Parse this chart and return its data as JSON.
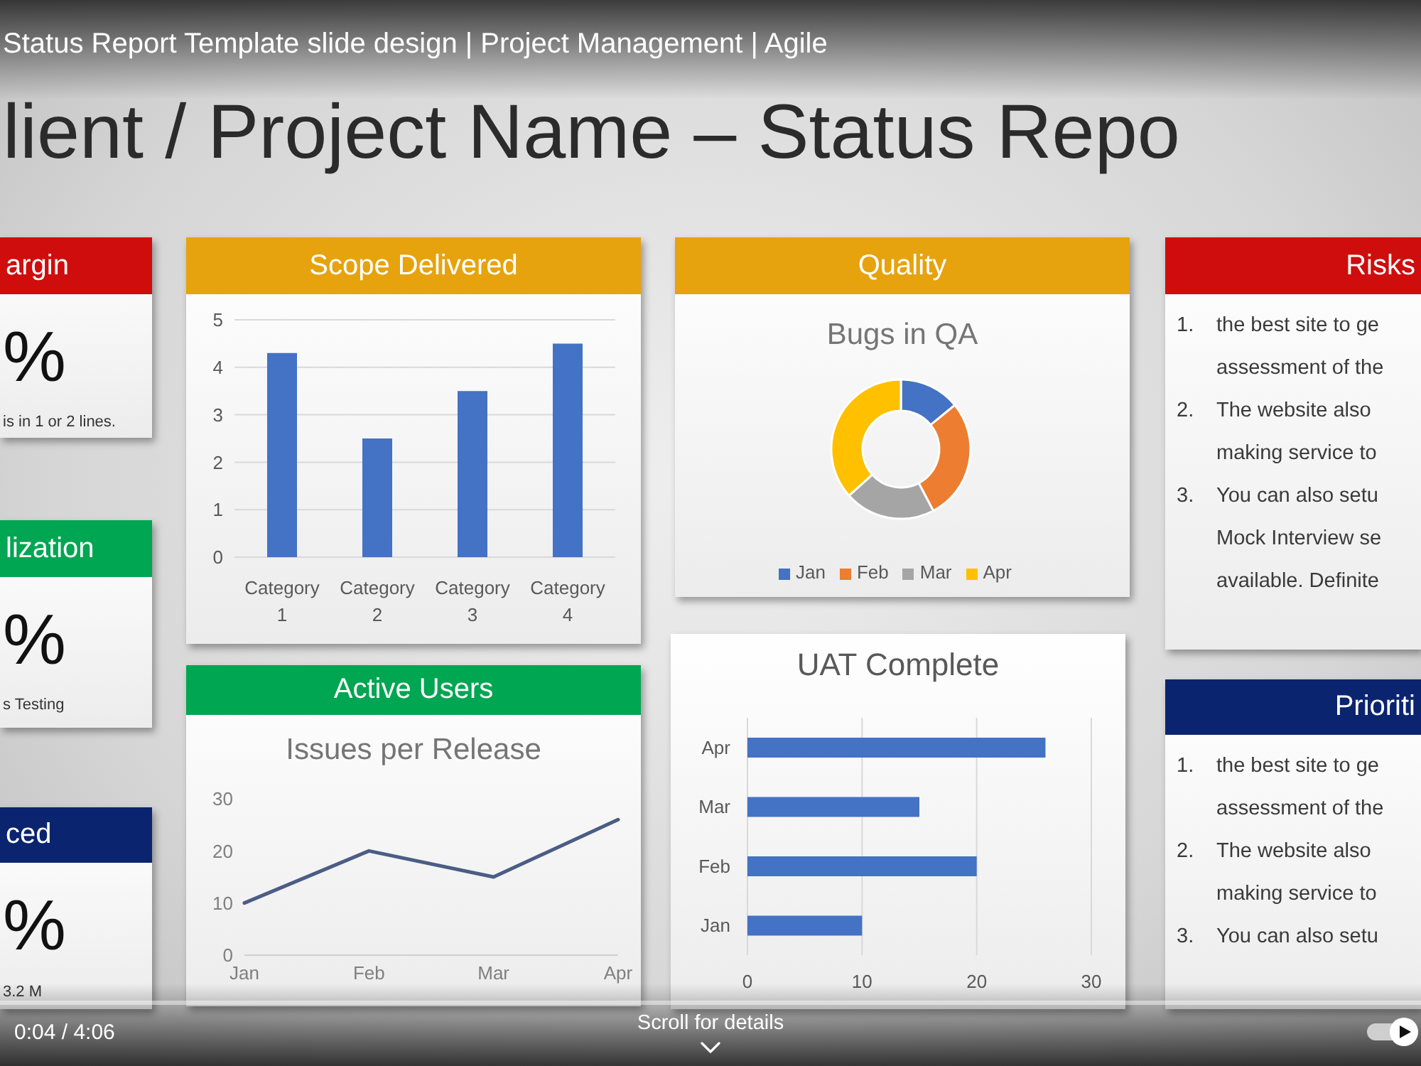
{
  "chart_data": [
    {
      "type": "other",
      "title": "lient / Project Name – Status Repo",
      "annotations": [
        "Status Report Template slide design | Project Management | Agile",
        "0:04 / 4:06",
        "Scroll for details"
      ]
    },
    {
      "type": "other",
      "title": "argin",
      "annotations": [
        "%",
        "is in 1 or 2 lines."
      ]
    },
    {
      "type": "other",
      "title": "lization",
      "annotations": [
        "%",
        "s Testing"
      ]
    },
    {
      "type": "other",
      "title": "ced",
      "annotations": [
        "%",
        "3.2 M"
      ]
    },
    {
      "type": "bar",
      "title": "Scope Delivered",
      "categories": [
        "Category 1",
        "Category 2",
        "Category 3",
        "Category 4"
      ],
      "values": [
        4.3,
        2.5,
        3.5,
        4.5
      ],
      "color": "#4472c4",
      "ylim": [
        0,
        5
      ],
      "yticks": [
        0,
        1,
        2,
        3,
        4,
        5
      ],
      "grid": "y"
    },
    {
      "type": "line",
      "title": "Active Users",
      "subtitle": "Issues per Release",
      "categories": [
        "Jan",
        "Feb",
        "Mar",
        "Apr"
      ],
      "values": [
        10,
        20,
        15,
        26
      ],
      "color": "#4b5d85",
      "ylim": [
        0,
        30
      ],
      "yticks": [
        0,
        10,
        20,
        30
      ],
      "marker": "none"
    },
    {
      "type": "donut",
      "title": "Quality",
      "subtitle": "Bugs in QA",
      "categories": [
        "Jan",
        "Feb",
        "Mar",
        "Apr"
      ],
      "values": [
        14.1,
        28.2,
        21.1,
        36.6
      ],
      "colors": [
        "#4472c4",
        "#ed7d31",
        "#a5a5a5",
        "#ffc000"
      ],
      "legend": "bottom"
    },
    {
      "type": "bar",
      "orientation": "horizontal",
      "title": "UAT Complete",
      "categories": [
        "Apr",
        "Mar",
        "Feb",
        "Jan"
      ],
      "values": [
        26,
        15,
        20,
        10
      ],
      "color": "#4472c4",
      "xlim": [
        0,
        30
      ],
      "xticks": [
        0,
        10,
        20,
        30
      ],
      "grid": "x"
    },
    {
      "type": "other",
      "title": "Risks",
      "annotations": [
        "1. the best site to ge\nassessment of the",
        "2. The website also\nmaking service to",
        "3. You can also setu\nMock Interview se\navailable. Definite"
      ]
    },
    {
      "type": "other",
      "title": "Prioriti",
      "annotations": [
        "1. the best site to ge\nassessment of the",
        "2. The website also\nmaking service to",
        "3. You can also setu"
      ]
    }
  ]
}
